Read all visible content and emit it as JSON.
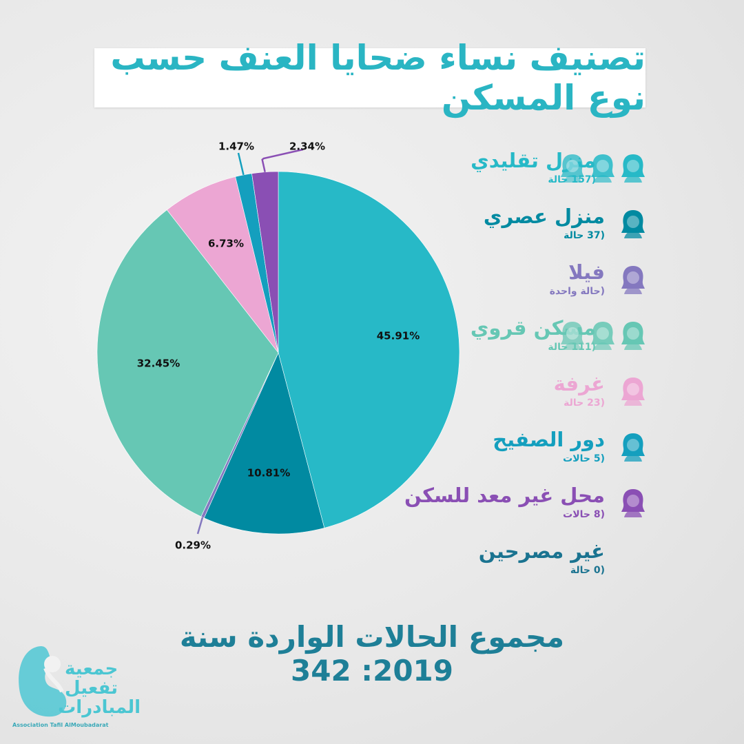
{
  "title": "تصنيف نساء ضحايا العنف حسب نوع المسكن",
  "total_text": "مجموع الحالات الواردة سنة 2019: 342",
  "logo": {
    "line1": "جمعية",
    "line2": "تفعيل",
    "line3": "المبادرات",
    "sub": "Association Tafil AlMoubadarat"
  },
  "colors": {
    "traditional": "#27b9c7",
    "modern": "#018aa1",
    "villa": "#8478bf",
    "rural": "#66c7b4",
    "room": "#eca6d3",
    "shanty": "#149fbe",
    "unfit": "#8a4fb4",
    "undeclared": "#1a7390"
  },
  "legend": [
    {
      "key": "traditional",
      "label": "منزل تقليدي",
      "count": "(157 حالة",
      "icons": 3
    },
    {
      "key": "modern",
      "label": "منزل عصري",
      "count": "(37 حالة",
      "icons": 1
    },
    {
      "key": "villa",
      "label": "فيلا",
      "count": "(حالة واحدة",
      "icons": 1
    },
    {
      "key": "rural",
      "label": "مسكن قروي",
      "count": "(111 حالة",
      "icons": 3
    },
    {
      "key": "room",
      "label": "غرفة",
      "count": "(23 حالة",
      "icons": 1
    },
    {
      "key": "shanty",
      "label": "دور الصفيح",
      "count": "(5 حالات",
      "icons": 1
    },
    {
      "key": "unfit",
      "label": "محل غير معد للسكن",
      "count": "(8 حالات",
      "icons": 1
    },
    {
      "key": "undeclared",
      "label": "غير مصرحين",
      "count": "(0 حالة",
      "icons": 0
    }
  ],
  "chart_data": {
    "type": "pie",
    "title": "تصنيف نساء ضحايا العنف حسب نوع المسكن",
    "slices": [
      {
        "key": "traditional",
        "label": "منزل تقليدي",
        "value": 45.91,
        "display": "45.91%",
        "count": 157
      },
      {
        "key": "modern",
        "label": "منزل عصري",
        "value": 10.81,
        "display": "10.81%",
        "count": 37
      },
      {
        "key": "villa",
        "label": "فيلا",
        "value": 0.29,
        "display": "0.29%",
        "count": 1
      },
      {
        "key": "rural",
        "label": "مسكن قروي",
        "value": 32.45,
        "display": "32.45%",
        "count": 111
      },
      {
        "key": "room",
        "label": "غرفة",
        "value": 6.73,
        "display": "6.73%",
        "count": 23
      },
      {
        "key": "shanty",
        "label": "دور الصفيح",
        "value": 1.47,
        "display": "1.47%",
        "count": 5
      },
      {
        "key": "unfit",
        "label": "محل غير معد للسكن",
        "value": 2.34,
        "display": "2.34%",
        "count": 8
      }
    ],
    "legend_placement": "right"
  }
}
